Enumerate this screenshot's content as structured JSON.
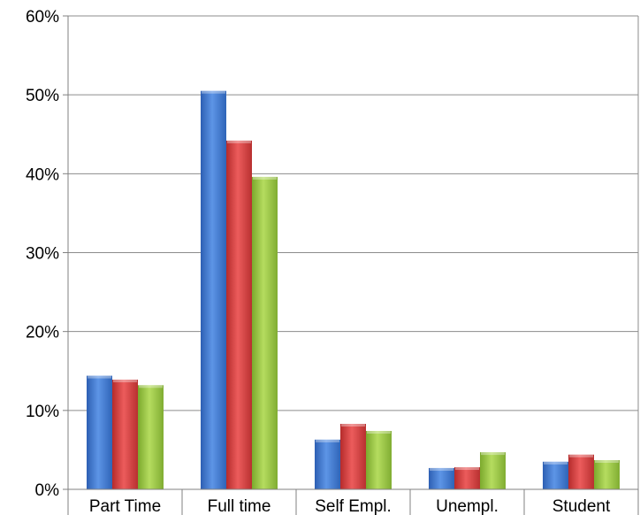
{
  "chart_data": {
    "type": "bar",
    "categories": [
      "Part Time",
      "Full time",
      "Self Empl.",
      "Unempl.",
      "Student"
    ],
    "series": [
      {
        "values": [
          14.4,
          50.5,
          6.3,
          2.7,
          3.5
        ],
        "color": "#3f78d0"
      },
      {
        "values": [
          13.9,
          44.2,
          8.3,
          2.8,
          4.4
        ],
        "color": "#d43d3d"
      },
      {
        "values": [
          13.2,
          39.6,
          7.4,
          4.7,
          3.7
        ],
        "color": "#98c441"
      }
    ],
    "y_ticks": [
      "0%",
      "10%",
      "20%",
      "30%",
      "40%",
      "50%",
      "60%"
    ],
    "ylim": [
      0,
      60
    ],
    "grid": true,
    "title": "",
    "xlabel": "",
    "ylabel": ""
  }
}
